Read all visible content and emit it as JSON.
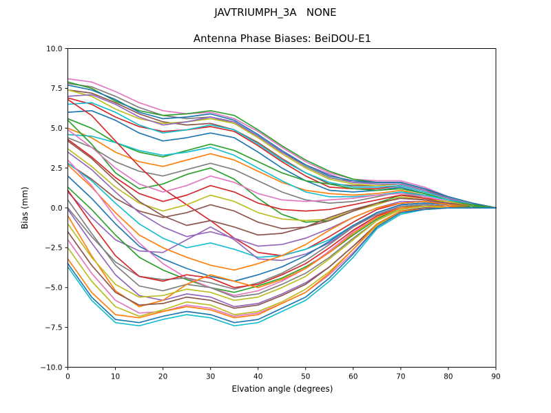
{
  "figure": {
    "suptitle": "JAVTRIUMPH_3A   NONE",
    "background": "#ffffff",
    "axis_color": "#000000"
  },
  "chart_data": {
    "type": "line",
    "title": "Antenna Phase Biases: BeiDOU-E1",
    "xlabel": "Elvation angle (degrees)",
    "ylabel": "Bias (mm)",
    "xlim": [
      0,
      90
    ],
    "ylim": [
      -10,
      10
    ],
    "grid": false,
    "legend": "none",
    "xticks": {
      "values": [
        0,
        10,
        20,
        30,
        40,
        50,
        60,
        70,
        80,
        90
      ],
      "labels": [
        "0",
        "10",
        "20",
        "30",
        "40",
        "50",
        "60",
        "70",
        "80",
        "90"
      ]
    },
    "yticks": {
      "values": [
        -10,
        -7.5,
        -5,
        -2.5,
        0,
        2.5,
        5,
        7.5,
        10
      ],
      "labels": [
        "−10.0",
        "−7.5",
        "−5.0",
        "−2.5",
        "0.0",
        "2.5",
        "5.0",
        "7.5",
        "10.0"
      ]
    },
    "x": [
      0,
      5,
      10,
      15,
      20,
      25,
      30,
      35,
      40,
      45,
      50,
      55,
      60,
      65,
      70,
      75,
      80,
      85,
      90
    ],
    "series": [
      {
        "color": "#e377c2",
        "values": [
          8.1,
          7.9,
          7.3,
          6.6,
          6.1,
          5.9,
          6.0,
          5.6,
          4.8,
          3.8,
          2.9,
          2.2,
          1.8,
          1.7,
          1.7,
          1.3,
          0.7,
          0.3,
          0.0
        ]
      },
      {
        "color": "#7f7f7f",
        "values": [
          7.8,
          7.6,
          7.0,
          6.3,
          5.8,
          5.6,
          5.7,
          5.3,
          4.5,
          3.5,
          2.6,
          1.9,
          1.6,
          1.6,
          1.6,
          1.2,
          0.7,
          0.3,
          0.0
        ]
      },
      {
        "color": "#8c564b",
        "values": [
          7.4,
          7.2,
          6.6,
          5.9,
          5.4,
          5.2,
          5.3,
          4.9,
          4.1,
          3.1,
          2.2,
          1.5,
          1.4,
          1.4,
          1.5,
          1.1,
          0.7,
          0.3,
          0.0
        ]
      },
      {
        "color": "#bcbd22",
        "values": [
          7.4,
          7.0,
          6.2,
          5.6,
          5.3,
          5.4,
          5.6,
          5.3,
          4.4,
          3.4,
          2.5,
          1.8,
          1.5,
          1.4,
          1.5,
          1.1,
          0.6,
          0.2,
          0.0
        ]
      },
      {
        "color": "#2ca02c",
        "values": [
          7.9,
          7.5,
          6.7,
          6.1,
          5.8,
          5.9,
          6.1,
          5.8,
          4.9,
          3.9,
          3.0,
          2.3,
          1.8,
          1.6,
          1.6,
          1.2,
          0.7,
          0.3,
          0.0
        ]
      },
      {
        "color": "#d62728",
        "values": [
          6.9,
          6.5,
          5.7,
          5.1,
          4.8,
          4.9,
          5.1,
          4.8,
          3.9,
          2.9,
          2.0,
          1.3,
          1.2,
          1.2,
          1.4,
          1.0,
          0.6,
          0.2,
          0.0
        ]
      },
      {
        "color": "#17becf",
        "values": [
          6.5,
          6.6,
          6.0,
          5.2,
          4.7,
          4.9,
          5.2,
          4.9,
          4.0,
          3.0,
          2.2,
          1.6,
          1.3,
          1.3,
          1.4,
          1.0,
          0.6,
          0.2,
          0.0
        ]
      },
      {
        "color": "#9467bd",
        "values": [
          7.0,
          7.1,
          6.5,
          5.7,
          5.2,
          5.4,
          5.7,
          5.4,
          4.5,
          3.5,
          2.7,
          2.1,
          1.6,
          1.5,
          1.5,
          1.1,
          0.6,
          0.2,
          0.0
        ]
      },
      {
        "color": "#1f77b4",
        "values": [
          6.0,
          6.1,
          5.5,
          4.7,
          4.2,
          4.4,
          4.7,
          4.4,
          3.5,
          2.5,
          1.7,
          1.1,
          1.0,
          1.1,
          1.3,
          0.9,
          0.5,
          0.2,
          0.0
        ]
      },
      {
        "color": "#ff7f0e",
        "values": [
          5.0,
          4.4,
          3.5,
          2.9,
          2.6,
          3.0,
          3.4,
          3.0,
          2.3,
          1.6,
          1.1,
          0.9,
          0.8,
          0.9,
          1.1,
          0.8,
          0.5,
          0.2,
          0.0
        ]
      },
      {
        "color": "#2ca02c",
        "values": [
          5.6,
          5.0,
          4.1,
          3.5,
          3.2,
          3.6,
          4.0,
          3.6,
          2.9,
          2.2,
          1.7,
          1.5,
          1.2,
          1.1,
          1.2,
          0.9,
          0.5,
          0.2,
          0.0
        ]
      },
      {
        "color": "#7f7f7f",
        "values": [
          4.4,
          3.8,
          2.9,
          2.3,
          2.0,
          2.4,
          2.8,
          2.4,
          1.7,
          1.0,
          0.5,
          0.3,
          0.4,
          0.7,
          1.0,
          0.7,
          0.4,
          0.2,
          0.0
        ]
      },
      {
        "color": "#17becf",
        "values": [
          4.6,
          4.5,
          4.1,
          3.6,
          3.3,
          3.5,
          3.8,
          3.3,
          2.5,
          1.7,
          1.0,
          0.7,
          0.7,
          0.8,
          1.0,
          0.8,
          0.5,
          0.2,
          0.0
        ]
      },
      {
        "color": "#1f77b4",
        "values": [
          7.7,
          7.4,
          6.8,
          6.0,
          5.6,
          5.7,
          5.9,
          5.5,
          4.6,
          3.6,
          2.7,
          2.0,
          1.7,
          1.6,
          1.6,
          1.2,
          0.7,
          0.3,
          0.0
        ]
      },
      {
        "color": "#d62728",
        "values": [
          6.8,
          5.8,
          4.2,
          2.6,
          1.2,
          0.2,
          -0.8,
          -1.9,
          -2.8,
          -3.0,
          -2.6,
          -1.8,
          -0.9,
          -0.1,
          0.3,
          0.4,
          0.2,
          0.1,
          0.0
        ]
      },
      {
        "color": "#2ca02c",
        "values": [
          5.5,
          4.0,
          2.2,
          1.2,
          1.5,
          2.1,
          2.5,
          1.8,
          0.6,
          -0.4,
          -0.9,
          -0.8,
          -0.2,
          0.3,
          0.8,
          0.7,
          0.4,
          0.2,
          0.0
        ]
      },
      {
        "color": "#d62728",
        "values": [
          4.3,
          3.2,
          1.9,
          0.9,
          0.4,
          0.8,
          1.4,
          1.0,
          0.3,
          -0.1,
          -0.2,
          -0.1,
          0.2,
          0.5,
          0.8,
          0.6,
          0.4,
          0.1,
          0.0
        ]
      },
      {
        "color": "#e377c2",
        "values": [
          4.9,
          3.8,
          2.5,
          1.5,
          1.0,
          1.4,
          2.0,
          1.6,
          0.9,
          0.5,
          0.4,
          0.5,
          0.6,
          0.8,
          0.9,
          0.7,
          0.4,
          0.1,
          0.0
        ]
      },
      {
        "color": "#bcbd22",
        "values": [
          3.7,
          2.6,
          1.3,
          0.3,
          -0.2,
          0.2,
          0.8,
          0.4,
          -0.3,
          -0.7,
          -0.8,
          -0.7,
          -0.2,
          0.2,
          0.7,
          0.5,
          0.4,
          0.1,
          0.0
        ]
      },
      {
        "color": "#8c564b",
        "values": [
          2.8,
          1.8,
          0.6,
          -0.2,
          -0.6,
          -0.3,
          0.2,
          -0.2,
          -0.9,
          -1.3,
          -1.2,
          -0.8,
          -0.2,
          0.3,
          0.6,
          0.5,
          0.3,
          0.1,
          0.0
        ]
      },
      {
        "color": "#9467bd",
        "values": [
          3.5,
          2.4,
          1.0,
          -0.3,
          -1.2,
          -1.8,
          -1.5,
          -1.9,
          -2.4,
          -2.3,
          -1.9,
          -1.3,
          -0.6,
          0.0,
          0.4,
          0.4,
          0.3,
          0.1,
          0.0
        ]
      },
      {
        "color": "#8c564b",
        "values": [
          4.2,
          3.1,
          1.7,
          0.4,
          -0.5,
          -1.1,
          -0.8,
          -1.2,
          -1.7,
          -1.6,
          -1.2,
          -0.6,
          -0.1,
          0.3,
          0.6,
          0.5,
          0.3,
          0.1,
          0.0
        ]
      },
      {
        "color": "#17becf",
        "values": [
          2.8,
          1.7,
          0.3,
          -1.0,
          -1.9,
          -2.5,
          -2.2,
          -2.6,
          -3.1,
          -3.0,
          -2.6,
          -2.0,
          -1.1,
          -0.3,
          0.2,
          0.3,
          0.2,
          0.1,
          0.0
        ]
      },
      {
        "color": "#9467bd",
        "values": [
          1.0,
          -0.6,
          -2.0,
          -2.7,
          -2.8,
          -2.0,
          -1.2,
          -2.0,
          -3.2,
          -3.3,
          -2.9,
          -2.2,
          -1.2,
          -0.3,
          0.2,
          0.3,
          0.2,
          0.1,
          0.0
        ]
      },
      {
        "color": "#1f77b4",
        "values": [
          2.0,
          0.6,
          -1.0,
          -2.4,
          -3.2,
          -3.8,
          -4.3,
          -4.6,
          -4.2,
          -3.7,
          -3.0,
          -2.1,
          -1.1,
          -0.3,
          0.2,
          0.3,
          0.2,
          0.1,
          0.0
        ]
      },
      {
        "color": "#ff7f0e",
        "values": [
          2.7,
          1.3,
          -0.3,
          -1.7,
          -2.5,
          -3.1,
          -3.6,
          -3.9,
          -3.5,
          -3.0,
          -2.3,
          -1.4,
          -0.6,
          0.0,
          0.3,
          0.4,
          0.2,
          0.1,
          0.0
        ]
      },
      {
        "color": "#2ca02c",
        "values": [
          1.3,
          -0.1,
          -1.7,
          -3.1,
          -3.9,
          -4.5,
          -5.0,
          -5.3,
          -4.9,
          -4.4,
          -3.7,
          -2.8,
          -1.7,
          -0.7,
          0.0,
          0.2,
          0.1,
          0.1,
          0.0
        ]
      },
      {
        "color": "#e377c2",
        "values": [
          3.0,
          1.4,
          -0.6,
          -2.2,
          -3.5,
          -4.4,
          -5.0,
          -5.5,
          -5.2,
          -4.6,
          -3.8,
          -2.7,
          -1.5,
          -0.5,
          0.1,
          0.2,
          0.1,
          0.0,
          0.0
        ]
      },
      {
        "color": "#7f7f7f",
        "values": [
          0.0,
          -1.8,
          -3.4,
          -4.3,
          -4.5,
          -4.4,
          -4.7,
          -5.1,
          -4.7,
          -4.1,
          -3.3,
          -2.3,
          -1.2,
          -0.4,
          0.1,
          0.2,
          0.1,
          0.0,
          0.0
        ]
      },
      {
        "color": "#7f7f7f",
        "values": [
          0.5,
          -1.6,
          -3.6,
          -4.9,
          -5.2,
          -4.8,
          -5.0,
          -5.6,
          -5.4,
          -4.8,
          -4.1,
          -3.1,
          -1.9,
          -0.8,
          -0.1,
          0.1,
          0.1,
          0.0,
          0.0
        ]
      },
      {
        "color": "#d62728",
        "values": [
          1.1,
          -1.0,
          -3.0,
          -4.3,
          -4.6,
          -4.2,
          -4.4,
          -5.0,
          -4.8,
          -4.2,
          -3.5,
          -2.5,
          -1.4,
          -0.5,
          0.0,
          0.1,
          0.1,
          0.0,
          0.0
        ]
      },
      {
        "color": "#9467bd",
        "values": [
          -0.1,
          -2.2,
          -4.2,
          -5.5,
          -5.8,
          -5.4,
          -5.6,
          -6.2,
          -6.0,
          -5.4,
          -4.7,
          -3.7,
          -2.4,
          -1.1,
          -0.2,
          0.0,
          0.0,
          0.0,
          0.0
        ]
      },
      {
        "color": "#ff7f0e",
        "values": [
          -0.5,
          -3.0,
          -5.2,
          -6.2,
          -5.8,
          -4.8,
          -4.2,
          -4.6,
          -5.0,
          -4.5,
          -3.8,
          -2.8,
          -1.6,
          -0.6,
          0.0,
          0.1,
          0.1,
          0.0,
          0.0
        ]
      },
      {
        "color": "#8c564b",
        "values": [
          -1.5,
          -3.6,
          -5.3,
          -6.1,
          -6.0,
          -5.6,
          -5.8,
          -6.3,
          -6.1,
          -5.5,
          -4.8,
          -3.7,
          -2.4,
          -1.0,
          -0.2,
          0.0,
          0.0,
          0.0,
          0.0
        ]
      },
      {
        "color": "#bcbd22",
        "values": [
          -1.0,
          -3.1,
          -4.8,
          -5.6,
          -5.5,
          -5.1,
          -5.3,
          -5.8,
          -5.6,
          -5.0,
          -4.3,
          -3.2,
          -2.0,
          -0.8,
          -0.1,
          0.1,
          0.0,
          0.0,
          0.0
        ]
      },
      {
        "color": "#e377c2",
        "values": [
          -2.0,
          -4.1,
          -5.8,
          -6.6,
          -6.5,
          -6.1,
          -6.3,
          -6.8,
          -6.6,
          -6.0,
          -5.3,
          -4.2,
          -2.8,
          -1.2,
          -0.3,
          -0.1,
          0.0,
          0.0,
          0.0
        ]
      },
      {
        "color": "#bcbd22",
        "values": [
          -2.5,
          -4.6,
          -6.2,
          -6.8,
          -6.4,
          -5.9,
          -6.1,
          -6.7,
          -6.5,
          -5.9,
          -5.1,
          -4.0,
          -2.6,
          -1.1,
          -0.3,
          -0.1,
          0.0,
          0.0,
          0.0
        ]
      },
      {
        "color": "#ff7f0e",
        "values": [
          -3.2,
          -5.3,
          -6.7,
          -6.9,
          -6.5,
          -6.2,
          -6.4,
          -6.9,
          -6.7,
          -6.0,
          -5.3,
          -4.1,
          -2.6,
          -1.0,
          -0.2,
          -0.1,
          0.0,
          0.0,
          0.0
        ]
      },
      {
        "color": "#17becf",
        "values": [
          -3.7,
          -5.8,
          -7.2,
          -7.4,
          -7.0,
          -6.7,
          -6.9,
          -7.4,
          -7.2,
          -6.5,
          -5.8,
          -4.6,
          -3.1,
          -1.3,
          -0.4,
          -0.1,
          0.0,
          0.0,
          0.0
        ]
      },
      {
        "color": "#1f77b4",
        "values": [
          -3.5,
          -5.6,
          -7.0,
          -7.2,
          -6.8,
          -6.5,
          -6.7,
          -7.2,
          -7.0,
          -6.3,
          -5.6,
          -4.4,
          -2.9,
          -1.2,
          -0.3,
          -0.1,
          0.0,
          0.0,
          0.0
        ]
      }
    ]
  }
}
